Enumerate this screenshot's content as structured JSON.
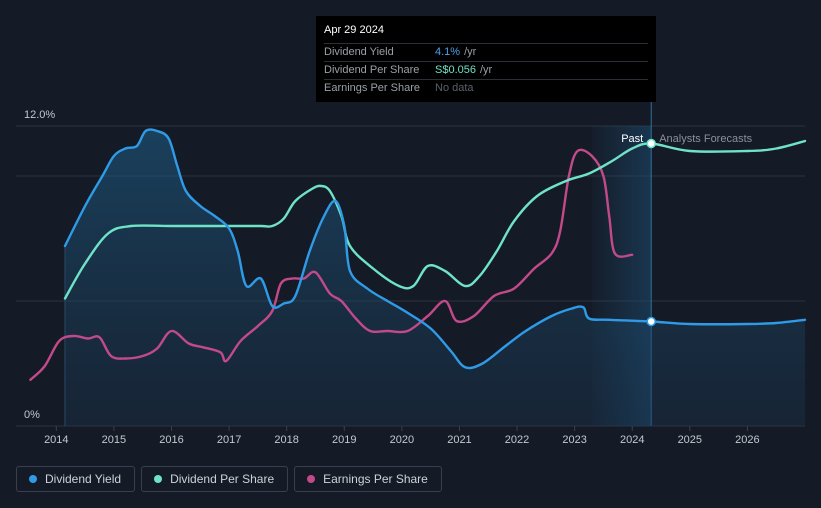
{
  "tooltip": {
    "date": "Apr 29 2024",
    "rows": [
      {
        "label": "Dividend Yield",
        "value": "4.1%",
        "unit": "/yr"
      },
      {
        "label": "Dividend Per Share",
        "value": "S$0.056",
        "unit": "/yr"
      },
      {
        "label": "Earnings Per Share",
        "value": "No data",
        "unit": ""
      }
    ]
  },
  "colors": {
    "background": "#151b26",
    "dividend_yield": "#2f9be6",
    "dividend_per_share": "#6fe3c8",
    "earnings_per_share": "#c24a8a",
    "grid": "#2c3340",
    "axis_text": "#c3c8cf"
  },
  "legend": [
    {
      "label": "Dividend Yield",
      "color": "#2f9be6"
    },
    {
      "label": "Dividend Per Share",
      "color": "#6fe3c8"
    },
    {
      "label": "Earnings Per Share",
      "color": "#c24a8a"
    }
  ],
  "chart_data": {
    "type": "line",
    "title": "",
    "xlabel": "",
    "ylabel": "",
    "xlim": [
      2013.3,
      2027.0
    ],
    "ylim": [
      0,
      12
    ],
    "y_tick_labels": [
      "0%",
      "12.0%"
    ],
    "x_ticks": [
      2014,
      2015,
      2016,
      2017,
      2018,
      2019,
      2020,
      2021,
      2022,
      2023,
      2024,
      2025,
      2026
    ],
    "marker_date": 2024.33,
    "forecast_start": 2023.3,
    "labels": {
      "past": "Past",
      "forecast": "Analysts Forecasts"
    },
    "series": [
      {
        "name": "Dividend Yield",
        "filled": true,
        "points": [
          [
            2014.15,
            7.2
          ],
          [
            2014.5,
            8.8
          ],
          [
            2014.8,
            10.0
          ],
          [
            2015.0,
            10.8
          ],
          [
            2015.2,
            11.1
          ],
          [
            2015.4,
            11.2
          ],
          [
            2015.55,
            11.8
          ],
          [
            2015.75,
            11.8
          ],
          [
            2015.95,
            11.5
          ],
          [
            2016.1,
            10.4
          ],
          [
            2016.25,
            9.4
          ],
          [
            2016.5,
            8.8
          ],
          [
            2016.75,
            8.4
          ],
          [
            2017.0,
            7.9
          ],
          [
            2017.15,
            7.0
          ],
          [
            2017.3,
            5.6
          ],
          [
            2017.55,
            5.9
          ],
          [
            2017.75,
            4.8
          ],
          [
            2017.95,
            4.9
          ],
          [
            2018.15,
            5.2
          ],
          [
            2018.4,
            7.0
          ],
          [
            2018.65,
            8.4
          ],
          [
            2018.85,
            9.0
          ],
          [
            2019.0,
            8.0
          ],
          [
            2019.1,
            6.2
          ],
          [
            2019.4,
            5.5
          ],
          [
            2019.75,
            5.0
          ],
          [
            2020.05,
            4.6
          ],
          [
            2020.5,
            3.9
          ],
          [
            2020.85,
            3.0
          ],
          [
            2021.1,
            2.35
          ],
          [
            2021.4,
            2.5
          ],
          [
            2021.8,
            3.2
          ],
          [
            2022.15,
            3.8
          ],
          [
            2022.6,
            4.4
          ],
          [
            2022.95,
            4.7
          ],
          [
            2023.15,
            4.75
          ],
          [
            2023.25,
            4.3
          ],
          [
            2023.6,
            4.25
          ],
          [
            2024.33,
            4.18
          ],
          [
            2025.0,
            4.08
          ],
          [
            2026.0,
            4.08
          ],
          [
            2026.5,
            4.12
          ],
          [
            2027.0,
            4.25
          ]
        ]
      },
      {
        "name": "Dividend Per Share",
        "filled": false,
        "points": [
          [
            2014.15,
            5.1
          ],
          [
            2014.5,
            6.5
          ],
          [
            2014.9,
            7.7
          ],
          [
            2015.3,
            8.0
          ],
          [
            2016.0,
            8.0
          ],
          [
            2017.0,
            8.0
          ],
          [
            2017.55,
            8.0
          ],
          [
            2017.75,
            8.0
          ],
          [
            2017.95,
            8.3
          ],
          [
            2018.15,
            9.0
          ],
          [
            2018.45,
            9.5
          ],
          [
            2018.6,
            9.6
          ],
          [
            2018.75,
            9.4
          ],
          [
            2018.95,
            8.4
          ],
          [
            2019.1,
            7.2
          ],
          [
            2019.5,
            6.3
          ],
          [
            2019.95,
            5.6
          ],
          [
            2020.2,
            5.6
          ],
          [
            2020.45,
            6.4
          ],
          [
            2020.75,
            6.2
          ],
          [
            2021.1,
            5.6
          ],
          [
            2021.35,
            6.0
          ],
          [
            2021.65,
            7.0
          ],
          [
            2021.95,
            8.2
          ],
          [
            2022.35,
            9.2
          ],
          [
            2022.85,
            9.8
          ],
          [
            2023.25,
            10.1
          ],
          [
            2023.65,
            10.6
          ],
          [
            2024.0,
            11.1
          ],
          [
            2024.33,
            11.3
          ],
          [
            2025.0,
            11.0
          ],
          [
            2026.0,
            11.0
          ],
          [
            2026.5,
            11.1
          ],
          [
            2027.0,
            11.4
          ]
        ]
      },
      {
        "name": "Earnings Per Share",
        "filled": false,
        "points": [
          [
            2013.55,
            1.85
          ],
          [
            2013.8,
            2.4
          ],
          [
            2014.05,
            3.4
          ],
          [
            2014.3,
            3.6
          ],
          [
            2014.55,
            3.5
          ],
          [
            2014.75,
            3.55
          ],
          [
            2014.95,
            2.8
          ],
          [
            2015.2,
            2.7
          ],
          [
            2015.5,
            2.8
          ],
          [
            2015.75,
            3.1
          ],
          [
            2016.0,
            3.8
          ],
          [
            2016.3,
            3.3
          ],
          [
            2016.55,
            3.15
          ],
          [
            2016.85,
            2.95
          ],
          [
            2016.95,
            2.6
          ],
          [
            2017.2,
            3.4
          ],
          [
            2017.5,
            4.0
          ],
          [
            2017.75,
            4.6
          ],
          [
            2017.9,
            5.7
          ],
          [
            2018.1,
            5.9
          ],
          [
            2018.3,
            5.9
          ],
          [
            2018.5,
            6.15
          ],
          [
            2018.75,
            5.3
          ],
          [
            2018.95,
            5.0
          ],
          [
            2019.2,
            4.3
          ],
          [
            2019.45,
            3.8
          ],
          [
            2019.75,
            3.8
          ],
          [
            2020.1,
            3.8
          ],
          [
            2020.45,
            4.4
          ],
          [
            2020.75,
            5.0
          ],
          [
            2020.95,
            4.2
          ],
          [
            2021.25,
            4.4
          ],
          [
            2021.6,
            5.2
          ],
          [
            2021.95,
            5.5
          ],
          [
            2022.3,
            6.3
          ],
          [
            2022.6,
            6.9
          ],
          [
            2022.75,
            7.8
          ],
          [
            2022.9,
            10.0
          ],
          [
            2023.05,
            11.0
          ],
          [
            2023.3,
            10.8
          ],
          [
            2023.5,
            10.0
          ],
          [
            2023.6,
            8.4
          ],
          [
            2023.7,
            6.9
          ],
          [
            2024.0,
            6.85
          ]
        ]
      }
    ]
  }
}
